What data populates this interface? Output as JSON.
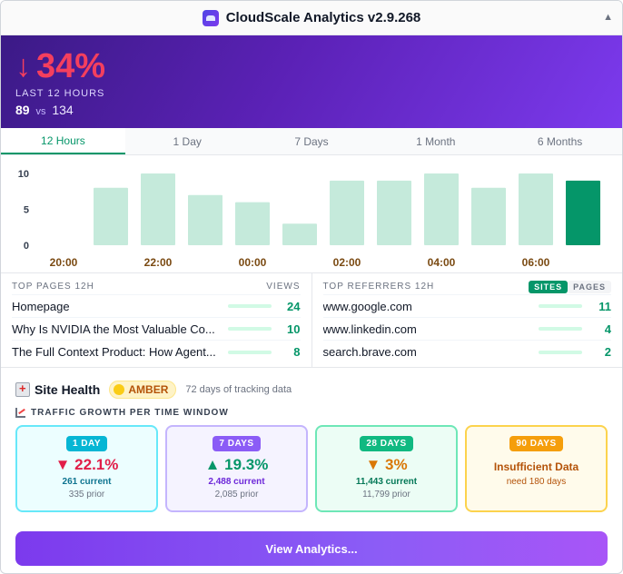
{
  "window": {
    "title": "CloudScale Analytics v2.9.268",
    "collapse_glyph": "▲"
  },
  "hero": {
    "arrow": "↓",
    "change": "34%",
    "window_label": "LAST 12 HOURS",
    "current": "89",
    "vs": "vs",
    "previous": "134"
  },
  "tabs": [
    {
      "label": "12 Hours",
      "active": true
    },
    {
      "label": "1 Day"
    },
    {
      "label": "7 Days"
    },
    {
      "label": "1 Month"
    },
    {
      "label": "6 Months"
    }
  ],
  "chart_data": {
    "type": "bar",
    "x_ticks": [
      "20:00",
      "22:00",
      "00:00",
      "02:00",
      "04:00",
      "06:00"
    ],
    "y_ticks": [
      0,
      5,
      10
    ],
    "ylim": [
      0,
      10
    ],
    "values": [
      8,
      10,
      7,
      6,
      3,
      9,
      9,
      10,
      8,
      10,
      9
    ],
    "highlight_last": true,
    "colors": {
      "bar": "#c5eadb",
      "highlight": "#059669",
      "tick_x": "#7a4a12",
      "tick_y": "#374151"
    }
  },
  "top_pages": {
    "header": "TOP PAGES 12H",
    "col_label": "VIEWS",
    "max": 24,
    "rows": [
      {
        "label": "Homepage",
        "count": 24
      },
      {
        "label": "Why Is NVIDIA the Most Valuable Co...",
        "count": 10
      },
      {
        "label": "The Full Context Product: How Agent...",
        "count": 8
      }
    ]
  },
  "top_referrers": {
    "header": "TOP REFERRERS 12H",
    "toggle": {
      "on": "SITES",
      "off": "PAGES"
    },
    "max": 11,
    "rows": [
      {
        "label": "www.google.com",
        "count": 11
      },
      {
        "label": "www.linkedin.com",
        "count": 4
      },
      {
        "label": "search.brave.com",
        "count": 2
      }
    ]
  },
  "health": {
    "title": "Site Health",
    "status": "AMBER",
    "note": "72 days of tracking data",
    "growth_title": "TRAFFIC GROWTH PER TIME WINDOW",
    "cards": [
      {
        "chip": "1 DAY",
        "pct": "▼ 22.1%",
        "current": "261 current",
        "prior": "335 prior"
      },
      {
        "chip": "7 DAYS",
        "pct": "▲ 19.3%",
        "current": "2,488 current",
        "prior": "2,085 prior"
      },
      {
        "chip": "28 DAYS",
        "pct": "▼ 3%",
        "current": "11,443 current",
        "prior": "11,799 prior"
      },
      {
        "chip": "90 DAYS",
        "title": "Insufficient Data",
        "need": "need 180 days"
      }
    ]
  },
  "footer": {
    "button_label": "View Analytics..."
  }
}
